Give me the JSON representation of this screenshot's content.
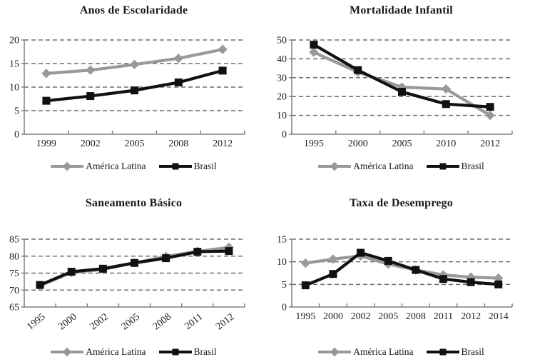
{
  "page": {
    "background": "#ffffff"
  },
  "colors": {
    "america_latina": "#999999",
    "brasil": "#111111",
    "gridline": "#6e6e6e",
    "axis": "#808080",
    "text": "#1f1f1f"
  },
  "chart_data": [
    {
      "type": "line",
      "title": "Anos de Escolaridade",
      "categories": [
        "1999",
        "2002",
        "2005",
        "2008",
        "2012"
      ],
      "series": [
        {
          "name": "América Latina",
          "color": "#999999",
          "marker": "diamond",
          "values": [
            12.9,
            13.6,
            14.8,
            16.1,
            18.0
          ]
        },
        {
          "name": "Brasil",
          "color": "#111111",
          "marker": "square",
          "values": [
            7.1,
            8.1,
            9.3,
            11.0,
            13.5
          ]
        }
      ],
      "xlabel": "",
      "ylabel": "",
      "ylim": [
        0,
        20
      ],
      "yticks": [
        0,
        5,
        10,
        15,
        20
      ],
      "rotate_xlabels": false,
      "grid": true,
      "legend_position": "bottom"
    },
    {
      "type": "line",
      "title": "Mortalidade Infantil",
      "categories": [
        "1995",
        "2000",
        "2005",
        "2010",
        "2012"
      ],
      "series": [
        {
          "name": "América Latina",
          "color": "#999999",
          "marker": "diamond",
          "values": [
            43.5,
            33.0,
            25.0,
            24.0,
            10.0
          ]
        },
        {
          "name": "Brasil",
          "color": "#111111",
          "marker": "square",
          "values": [
            47.5,
            34.0,
            22.5,
            16.0,
            14.5
          ]
        }
      ],
      "xlabel": "",
      "ylabel": "",
      "ylim": [
        0,
        50
      ],
      "yticks": [
        0,
        10,
        20,
        30,
        40,
        50
      ],
      "rotate_xlabels": false,
      "grid": true,
      "legend_position": "bottom"
    },
    {
      "type": "line",
      "title": "Saneamento Básico",
      "categories": [
        "1995",
        "2000",
        "2002",
        "2005",
        "2008",
        "2011",
        "2012"
      ],
      "series": [
        {
          "name": "América Latina",
          "color": "#999999",
          "marker": "diamond",
          "values": [
            71.3,
            75.2,
            76.1,
            78.0,
            79.9,
            81.4,
            82.6
          ]
        },
        {
          "name": "Brasil",
          "color": "#111111",
          "marker": "square",
          "values": [
            71.5,
            75.4,
            76.3,
            78.0,
            79.4,
            81.3,
            81.5
          ]
        }
      ],
      "xlabel": "",
      "ylabel": "",
      "ylim": [
        65,
        85
      ],
      "yticks": [
        65,
        70,
        75,
        80,
        85
      ],
      "rotate_xlabels": true,
      "grid": true,
      "legend_position": "bottom"
    },
    {
      "type": "line",
      "title": "Taxa de Desemprego",
      "categories": [
        "1995",
        "2000",
        "2002",
        "2005",
        "2008",
        "2011",
        "2012",
        "2014"
      ],
      "series": [
        {
          "name": "América Latina",
          "color": "#999999",
          "marker": "diamond",
          "values": [
            9.7,
            10.6,
            11.3,
            9.5,
            8.2,
            7.1,
            6.6,
            6.4
          ]
        },
        {
          "name": "Brasil",
          "color": "#111111",
          "marker": "square",
          "values": [
            4.8,
            7.3,
            12.0,
            10.2,
            8.2,
            6.2,
            5.5,
            5.0
          ]
        }
      ],
      "xlabel": "",
      "ylabel": "",
      "ylim": [
        0,
        15
      ],
      "yticks": [
        0,
        5,
        10,
        15
      ],
      "rotate_xlabels": false,
      "grid": true,
      "legend_position": "bottom"
    }
  ]
}
